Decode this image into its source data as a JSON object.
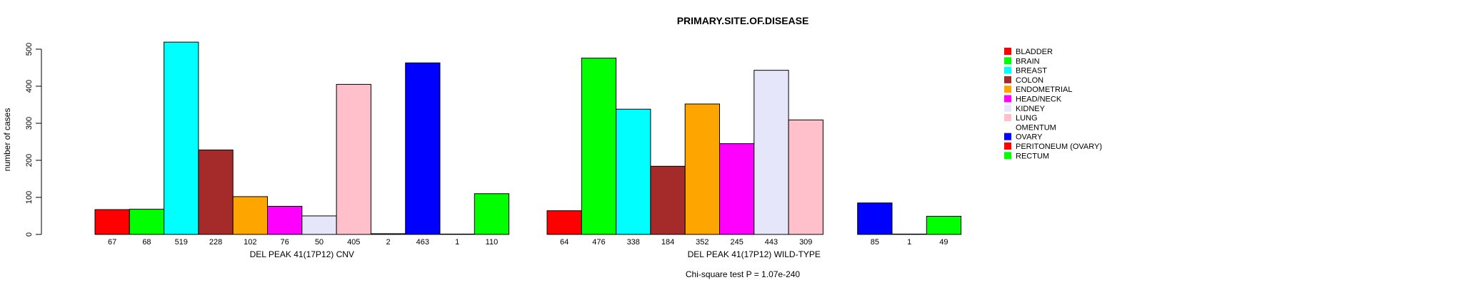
{
  "chart_data": {
    "type": "bar",
    "title": "PRIMARY.SITE.OF.DISEASE",
    "ylabel": "number of cases",
    "ylim": [
      0,
      520
    ],
    "yticks": [
      "0",
      "100",
      "200",
      "300",
      "400",
      "500"
    ],
    "ytick_values": [
      0,
      100,
      200,
      300,
      400,
      500
    ],
    "footer": "Chi-square test P = 1.07e-240",
    "categories": [
      "BLADDER",
      "BRAIN",
      "BREAST",
      "COLON",
      "ENDOMETRIAL",
      "HEAD/NECK",
      "KIDNEY",
      "LUNG",
      "OMENTUM",
      "OVARY",
      "PERITONEUM (OVARY)",
      "RECTUM"
    ],
    "colors": [
      "#ff0000",
      "#00ff00",
      "#00ffff",
      "#a52a2a",
      "#ffa500",
      "#ff00ff",
      "#e6e6fa",
      "#ffc0cb",
      "#ffffff",
      "#0000ff",
      "#ff0000",
      "#00ff00"
    ],
    "groups": [
      {
        "name": "DEL PEAK 41(17P12) CNV",
        "values": [
          67,
          68,
          519,
          228,
          102,
          76,
          50,
          405,
          2,
          463,
          1,
          110
        ],
        "value_labels": [
          "67",
          "68",
          "519",
          "228",
          "102",
          "76",
          "50",
          "405",
          "2",
          "463",
          "1",
          "110"
        ]
      },
      {
        "name": "DEL PEAK 41(17P12) WILD-TYPE",
        "values": [
          64,
          476,
          338,
          184,
          352,
          245,
          443,
          309,
          null,
          85,
          1,
          49
        ],
        "value_labels": [
          "64",
          "476",
          "338",
          "184",
          "352",
          "245",
          "443",
          "309",
          "",
          "85",
          "1",
          "49"
        ]
      }
    ],
    "legend": {
      "placement": "right",
      "entries": [
        "BLADDER",
        "BRAIN",
        "BREAST",
        "COLON",
        "ENDOMETRIAL",
        "HEAD/NECK",
        "KIDNEY",
        "LUNG",
        "OMENTUM",
        "OVARY",
        "PERITONEUM (OVARY)",
        "RECTUM"
      ]
    },
    "grid": false
  }
}
